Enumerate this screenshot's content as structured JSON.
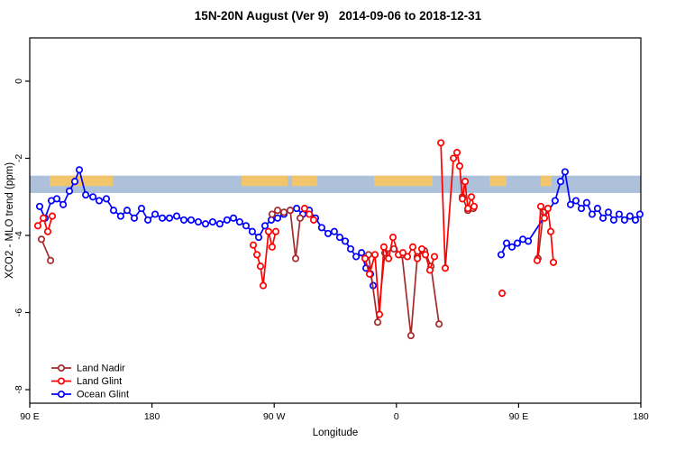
{
  "title": "15N-20N August (Ver 9)   2014-09-06 to 2018-12-31",
  "chart_data": {
    "type": "line",
    "title": "15N-20N August (Ver 9)   2014-09-06 to 2018-12-31",
    "xlabel": "Longitude",
    "ylabel": "XCO2 - MLO trend (ppm)",
    "x_axis_units": "degrees eastward from 90E (axis wraps: 90E,180,90W,0,90E,180)",
    "x_range": [
      0,
      450
    ],
    "y_range": [
      -8.35,
      1.12
    ],
    "grid": false,
    "legend_position": "bottom-left",
    "x_ticks": [
      {
        "pos": 0,
        "label": "90 E"
      },
      {
        "pos": 90,
        "label": "180"
      },
      {
        "pos": 180,
        "label": "90 W"
      },
      {
        "pos": 270,
        "label": "0"
      },
      {
        "pos": 360,
        "label": "90 E"
      },
      {
        "pos": 450,
        "label": "180"
      }
    ],
    "y_ticks": [
      {
        "val": 0,
        "label": "0"
      },
      {
        "val": -2,
        "label": "-2"
      },
      {
        "val": -4,
        "label": "-4"
      },
      {
        "val": -6,
        "label": "-6"
      },
      {
        "val": -8,
        "label": "-8"
      }
    ],
    "bands": {
      "ocean_band": {
        "name": "ocean-reference-band",
        "color": "#9fb6d4",
        "opacity": 0.85,
        "y": [
          -2.45,
          -2.9
        ],
        "x": [
          0,
          450
        ]
      },
      "land_band": {
        "name": "land-reference-band",
        "color": "#f3c566",
        "opacity": 0.95,
        "y": [
          -2.45,
          -2.72
        ],
        "ranges": [
          [
            14.6,
            61.1
          ],
          [
            156.0,
            190.0
          ],
          [
            193.0,
            211.7
          ],
          [
            253.5,
            296.7
          ],
          [
            338.5,
            351.1
          ],
          [
            376.3,
            384.3
          ]
        ]
      }
    },
    "series": [
      {
        "name": "Land Nadir",
        "color": "#a52a2a",
        "segments": [
          [
            [
              8.6,
              -4.1
            ],
            [
              15.3,
              -4.65
            ]
          ],
          [
            [
              178.5,
              -3.45
            ],
            [
              182.5,
              -3.35
            ],
            [
              187.2,
              -3.4
            ],
            [
              191.8,
              -3.35
            ],
            [
              195.8,
              -4.6
            ],
            [
              199.1,
              -3.55
            ]
          ],
          [
            [
              249.5,
              -4.5
            ],
            [
              256.2,
              -6.25
            ],
            [
              261.5,
              -4.45
            ],
            [
              268.2,
              -4.35
            ],
            [
              274.1,
              -4.5
            ],
            [
              280.7,
              -6.6
            ],
            [
              285.4,
              -4.55
            ],
            [
              290.7,
              -4.4
            ],
            [
              295.4,
              -4.8
            ],
            [
              301.4,
              -6.3
            ]
          ],
          [
            [
              318.6,
              -3.0
            ],
            [
              322.6,
              -3.35
            ],
            [
              326.6,
              -3.3
            ]
          ],
          [
            [
              374.3,
              -4.6
            ],
            [
              378.3,
              -3.4
            ]
          ]
        ]
      },
      {
        "name": "Land Glint",
        "color": "#ff0000",
        "segments": [
          [
            [
              6.0,
              -3.75
            ],
            [
              10.0,
              -3.55
            ],
            [
              13.3,
              -3.9
            ],
            [
              16.6,
              -3.5
            ]
          ],
          [
            [
              164.6,
              -4.25
            ],
            [
              167.3,
              -4.5
            ],
            [
              169.9,
              -4.8
            ],
            [
              171.9,
              -5.3
            ],
            [
              175.9,
              -3.9
            ],
            [
              178.5,
              -4.3
            ],
            [
              181.2,
              -3.9
            ]
          ],
          [
            [
              202.4,
              -3.3
            ],
            [
              205.8,
              -3.45
            ],
            [
              209.1,
              -3.6
            ]
          ],
          [
            [
              246.9,
              -4.6
            ],
            [
              250.2,
              -5.0
            ],
            [
              254.2,
              -4.5
            ],
            [
              257.5,
              -6.05
            ],
            [
              260.8,
              -4.3
            ],
            [
              264.2,
              -4.6
            ],
            [
              267.5,
              -4.05
            ],
            [
              271.5,
              -4.5
            ],
            [
              274.8,
              -4.45
            ],
            [
              278.1,
              -4.55
            ],
            [
              282.1,
              -4.3
            ],
            [
              285.4,
              -4.6
            ],
            [
              288.7,
              -4.35
            ],
            [
              291.4,
              -4.5
            ],
            [
              294.7,
              -4.9
            ],
            [
              298.0,
              -4.55
            ]
          ],
          [
            [
              302.7,
              -1.6
            ],
            [
              306.0,
              -4.85
            ],
            [
              312.0,
              -2.0
            ],
            [
              314.6,
              -1.85
            ],
            [
              316.6,
              -2.2
            ],
            [
              318.6,
              -3.05
            ],
            [
              320.6,
              -2.6
            ],
            [
              322.6,
              -3.3
            ],
            [
              325.2,
              -3.0
            ],
            [
              327.2,
              -3.25
            ]
          ],
          [
            [
              347.8,
              -5.5
            ]
          ],
          [
            [
              373.7,
              -4.65
            ],
            [
              376.3,
              -3.25
            ],
            [
              379.0,
              -3.55
            ],
            [
              381.6,
              -3.3
            ],
            [
              383.6,
              -3.9
            ],
            [
              385.6,
              -4.7
            ]
          ]
        ]
      },
      {
        "name": "Ocean Glint",
        "color": "#0000ff",
        "segments": [
          [
            [
              7.3,
              -3.25
            ],
            [
              11.3,
              -3.55
            ],
            [
              15.9,
              -3.1
            ],
            [
              19.9,
              -3.05
            ],
            [
              24.6,
              -3.2
            ],
            [
              29.2,
              -2.85
            ],
            [
              33.2,
              -2.6
            ],
            [
              36.5,
              -2.3
            ],
            [
              41.2,
              -2.95
            ],
            [
              46.5,
              -3.0
            ],
            [
              51.1,
              -3.1
            ],
            [
              56.4,
              -3.05
            ],
            [
              61.7,
              -3.35
            ],
            [
              67.0,
              -3.5
            ],
            [
              71.7,
              -3.35
            ],
            [
              77.0,
              -3.55
            ],
            [
              82.3,
              -3.3
            ],
            [
              87.0,
              -3.6
            ],
            [
              92.3,
              -3.45
            ],
            [
              97.6,
              -3.55
            ],
            [
              102.9,
              -3.55
            ],
            [
              108.2,
              -3.5
            ],
            [
              113.5,
              -3.6
            ],
            [
              118.8,
              -3.6
            ],
            [
              124.1,
              -3.65
            ],
            [
              129.4,
              -3.7
            ],
            [
              134.7,
              -3.65
            ],
            [
              140.0,
              -3.7
            ],
            [
              145.3,
              -3.6
            ],
            [
              150.0,
              -3.55
            ],
            [
              154.6,
              -3.65
            ],
            [
              159.3,
              -3.75
            ],
            [
              163.9,
              -3.9
            ],
            [
              168.6,
              -4.05
            ],
            [
              173.2,
              -3.75
            ],
            [
              177.9,
              -3.6
            ],
            [
              182.5,
              -3.55
            ],
            [
              187.2,
              -3.45
            ],
            [
              191.8,
              -3.35
            ],
            [
              196.5,
              -3.3
            ],
            [
              201.1,
              -3.45
            ],
            [
              205.8,
              -3.35
            ],
            [
              210.4,
              -3.55
            ],
            [
              215.0,
              -3.8
            ],
            [
              219.7,
              -3.95
            ],
            [
              224.3,
              -3.9
            ],
            [
              228.3,
              -4.05
            ],
            [
              232.3,
              -4.15
            ],
            [
              236.3,
              -4.35
            ],
            [
              240.3,
              -4.55
            ],
            [
              244.3,
              -4.45
            ],
            [
              247.6,
              -4.85
            ],
            [
              250.9,
              -5.0
            ],
            [
              252.9,
              -5.3
            ]
          ],
          [
            [
              347.1,
              -4.5
            ],
            [
              351.1,
              -4.2
            ],
            [
              355.1,
              -4.3
            ],
            [
              359.1,
              -4.2
            ],
            [
              363.1,
              -4.1
            ],
            [
              367.1,
              -4.15
            ],
            [
              386.9,
              -3.1
            ],
            [
              390.9,
              -2.6
            ],
            [
              394.2,
              -2.35
            ],
            [
              398.2,
              -3.2
            ],
            [
              402.2,
              -3.1
            ],
            [
              406.2,
              -3.3
            ],
            [
              410.1,
              -3.15
            ],
            [
              414.1,
              -3.45
            ],
            [
              418.1,
              -3.3
            ],
            [
              422.1,
              -3.55
            ],
            [
              426.1,
              -3.4
            ],
            [
              430.0,
              -3.6
            ],
            [
              434.0,
              -3.45
            ],
            [
              438.0,
              -3.6
            ],
            [
              442.0,
              -3.5
            ],
            [
              446.0,
              -3.6
            ],
            [
              449.3,
              -3.45
            ]
          ]
        ]
      }
    ],
    "legend": [
      "Land Nadir",
      "Land Glint",
      "Ocean Glint"
    ]
  }
}
